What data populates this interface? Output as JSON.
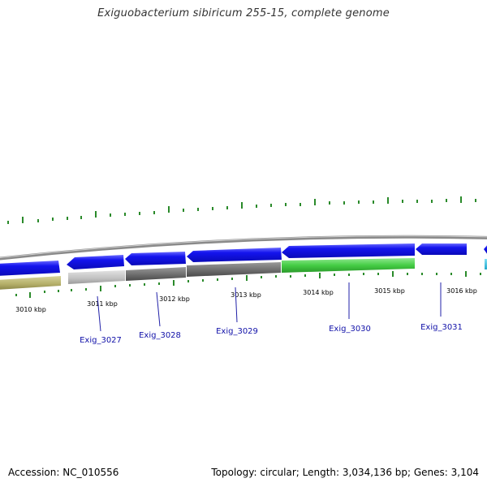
{
  "title": "Exiguobacterium sibiricum 255-15, complete genome",
  "footer": {
    "accession": "Accession: NC_010556",
    "summary": "Topology: circular; Length: 3,034,136 bp; Genes: 3,104"
  },
  "axis": {
    "tick_labels": [
      "3010 kbp",
      "3011 kbp",
      "3012 kbp",
      "3013 kbp",
      "3014 kbp",
      "3015 kbp",
      "3016 kbp"
    ]
  },
  "genes": {
    "labels": [
      "Exig_3027",
      "Exig_3028",
      "Exig_3029",
      "Exig_3030",
      "Exig_3031"
    ]
  },
  "colors": {
    "gene_strand": "#1010e8",
    "backbone": "#8a8a8a",
    "track_olive": "#b8b370",
    "track_light_gray": "#c4c4c4",
    "track_dark_gray": "#6a6a6a",
    "track_green": "#44cc44",
    "track_cyan": "#33bbdd",
    "skew_ticks": "#2a8a2a",
    "label_blue": "#1010a8"
  }
}
